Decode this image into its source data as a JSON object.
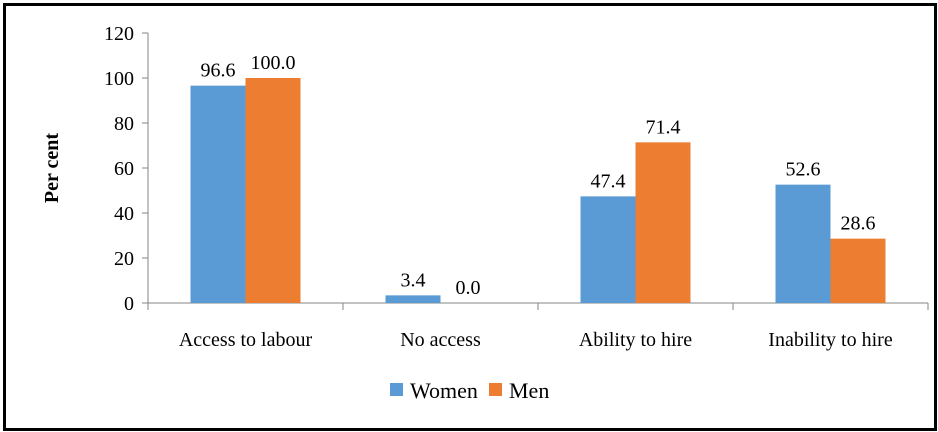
{
  "chart_data": {
    "type": "bar",
    "categories": [
      "Access to labour",
      "No access",
      "Ability to hire",
      "Inability to hire"
    ],
    "series": [
      {
        "name": "Women",
        "values": [
          96.6,
          3.4,
          47.4,
          52.6
        ],
        "labels": [
          "96.6",
          "3.4",
          "47.4",
          "52.6"
        ],
        "color": "#5B9BD5"
      },
      {
        "name": "Men",
        "values": [
          100.0,
          0.0,
          71.4,
          28.6
        ],
        "labels": [
          "100.0",
          "0.0",
          "71.4",
          "28.6"
        ],
        "color": "#ED7D31"
      }
    ],
    "ylabel": "Per cent",
    "ylim": [
      0,
      120
    ],
    "yticks": [
      0,
      20,
      40,
      60,
      80,
      100,
      120
    ],
    "ytick_labels": [
      "0",
      "20",
      "40",
      "60",
      "80",
      "100",
      "120"
    ],
    "grid": false,
    "legend_position": "bottom"
  }
}
